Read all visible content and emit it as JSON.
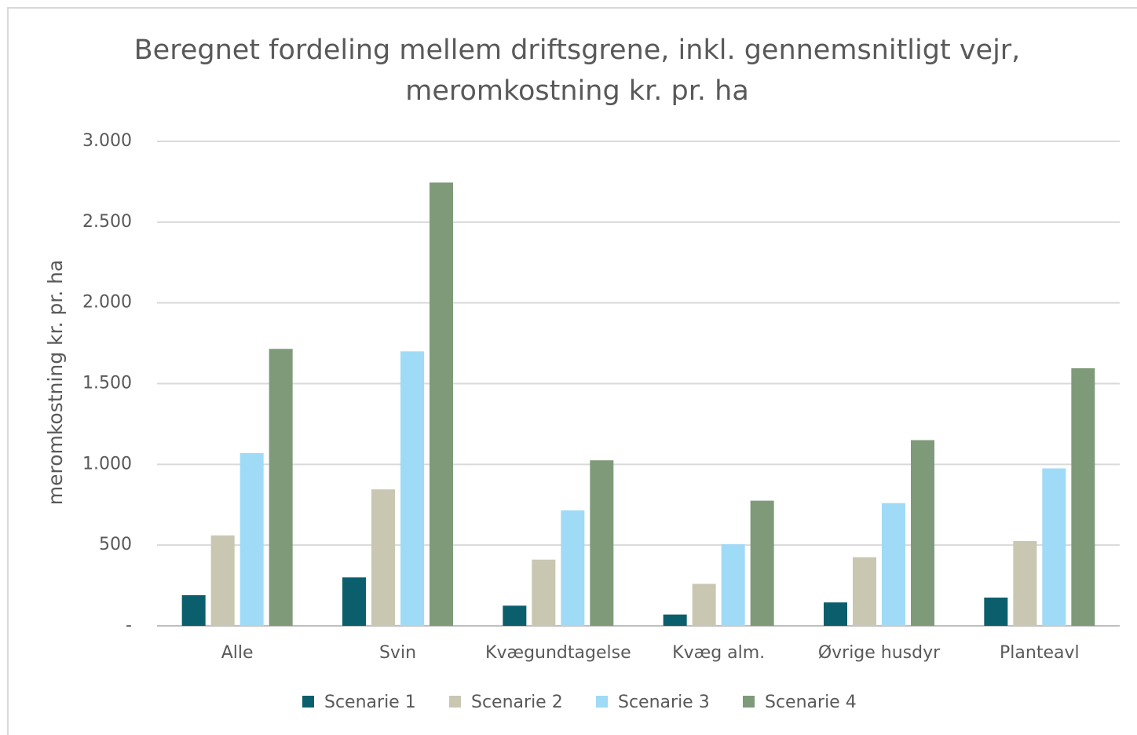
{
  "chart_data": {
    "type": "bar",
    "title": "Beregnet fordeling mellem driftsgrene, inkl. gennemsnitligt vejr, meromkostning kr. pr. ha",
    "ylabel": "meromkostning kr. pr. ha",
    "categories": [
      "Alle",
      "Svin",
      "Kvægundtagelse",
      "Kvæg alm.",
      "Øvrige husdyr",
      "Planteavl"
    ],
    "series": [
      {
        "name": "Scenarie 1",
        "color": "#0b5f6c",
        "values": [
          190,
          300,
          125,
          70,
          145,
          175
        ]
      },
      {
        "name": "Scenarie 2",
        "color": "#c9c7b1",
        "values": [
          560,
          845,
          410,
          260,
          425,
          525
        ]
      },
      {
        "name": "Scenarie 3",
        "color": "#9fdbf6",
        "values": [
          1070,
          1700,
          715,
          505,
          760,
          975
        ]
      },
      {
        "name": "Scenarie 4",
        "color": "#7f9a79",
        "values": [
          1715,
          2745,
          1025,
          775,
          1150,
          1595
        ]
      }
    ],
    "ylim": [
      0,
      3000
    ],
    "yticks": [
      {
        "value": 0,
        "label": "-"
      },
      500,
      {
        "value": 1000,
        "label": "1.000"
      },
      {
        "value": 1500,
        "label": "1.500"
      },
      {
        "value": 2000,
        "label": "2.000"
      },
      {
        "value": 2500,
        "label": "2.500"
      },
      {
        "value": 3000,
        "label": "3.000"
      }
    ],
    "grid": true,
    "legend": "bottom"
  }
}
